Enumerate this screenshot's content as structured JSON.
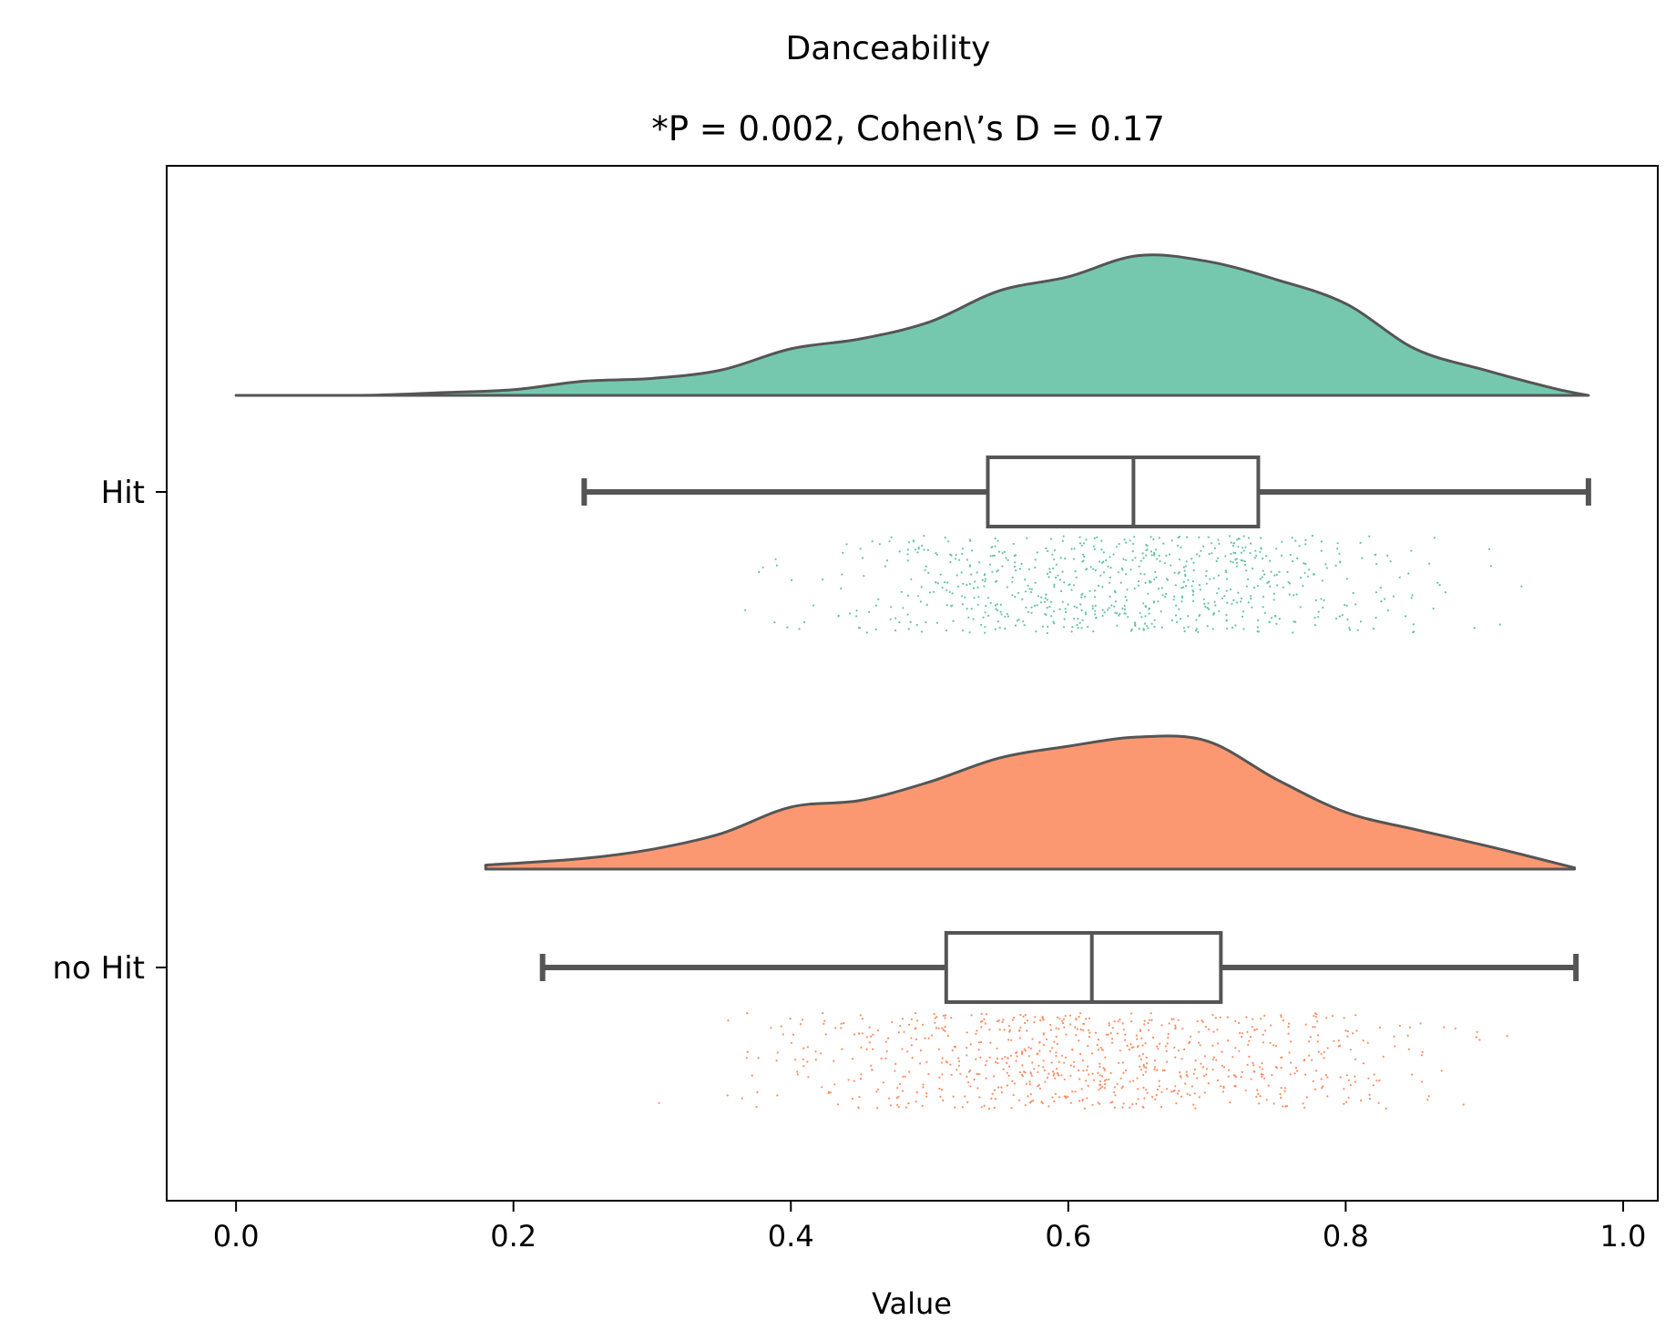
{
  "chart_data": {
    "type": "raincloud",
    "title": "Danceability",
    "subtitle": "*P = 0.002, Cohen\\’s D = 0.17",
    "xlabel": "Value",
    "ylabel": "",
    "xlim": [
      -0.05,
      1.025
    ],
    "x_ticks": [
      0.0,
      0.2,
      0.4,
      0.6,
      0.8,
      1.0
    ],
    "x_tick_labels": [
      "0.0",
      "0.2",
      "0.4",
      "0.6",
      "0.8",
      "1.0"
    ],
    "grid": false,
    "series": [
      {
        "name": "Hit",
        "color": "#66c2a5",
        "density": {
          "x": [
            0.0,
            0.05,
            0.1,
            0.15,
            0.2,
            0.25,
            0.3,
            0.35,
            0.4,
            0.45,
            0.5,
            0.55,
            0.6,
            0.65,
            0.7,
            0.75,
            0.8,
            0.85,
            0.9,
            0.95,
            0.975
          ],
          "y": [
            0.0,
            0.0,
            0.002,
            0.02,
            0.04,
            0.1,
            0.12,
            0.18,
            0.33,
            0.4,
            0.52,
            0.74,
            0.84,
            0.99,
            0.95,
            0.82,
            0.65,
            0.33,
            0.18,
            0.05,
            0.0
          ]
        },
        "box": {
          "whisker_low": 0.251,
          "q1": 0.542,
          "median": 0.647,
          "q3": 0.737,
          "whisker_high": 0.975
        },
        "points": {
          "min": 0.0,
          "max": 0.975,
          "center": 0.645,
          "spread": 0.155,
          "count": 760,
          "seed": 7
        }
      },
      {
        "name": "no Hit",
        "color": "#fc8d62",
        "density": {
          "x": [
            0.18,
            0.25,
            0.3,
            0.35,
            0.4,
            0.45,
            0.5,
            0.55,
            0.6,
            0.65,
            0.7,
            0.75,
            0.8,
            0.85,
            0.9,
            0.95,
            0.965
          ],
          "y": [
            0.03,
            0.08,
            0.15,
            0.27,
            0.47,
            0.52,
            0.66,
            0.84,
            0.93,
            1.0,
            0.97,
            0.68,
            0.43,
            0.3,
            0.18,
            0.05,
            0.01
          ]
        },
        "box": {
          "whisker_low": 0.221,
          "q1": 0.512,
          "median": 0.617,
          "q3": 0.71,
          "whisker_high": 0.966
        },
        "points": {
          "min": 0.18,
          "max": 0.966,
          "center": 0.615,
          "spread": 0.165,
          "count": 820,
          "seed": 13
        }
      }
    ]
  }
}
